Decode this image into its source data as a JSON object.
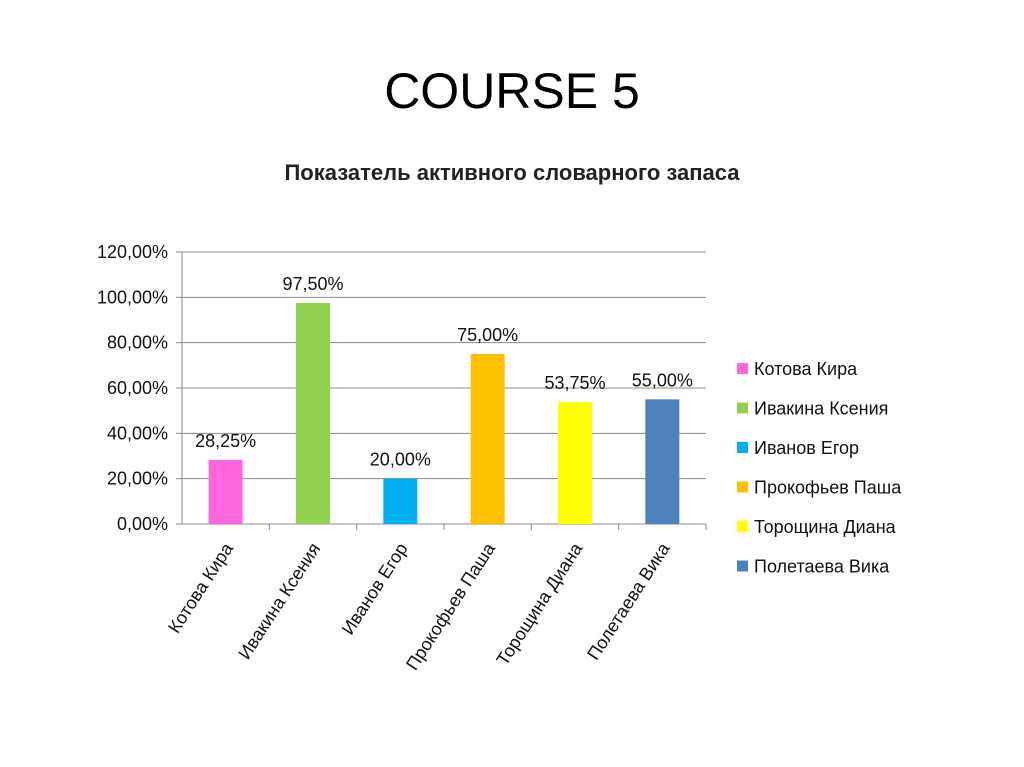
{
  "slide": {
    "title": "COURSE 5"
  },
  "chart_data": {
    "type": "bar",
    "title": "Показатель активного словарного запаса",
    "categories": [
      "Котова Кира",
      "Ивакина Ксения",
      "Иванов Егор",
      "Прокофьев Паша",
      "Торощина Диана",
      "Полетаева Вика"
    ],
    "values": [
      28.25,
      97.5,
      20.0,
      75.0,
      53.75,
      55.0
    ],
    "data_labels": [
      "28,25%",
      "97,50%",
      "20,00%",
      "75,00%",
      "53,75%",
      "55,00%"
    ],
    "colors": [
      "#ff66dd",
      "#92d050",
      "#00b0f0",
      "#ffc000",
      "#ffff00",
      "#4f81bd"
    ],
    "ylim": [
      0,
      120
    ],
    "yticks": [
      "0,00%",
      "20,00%",
      "40,00%",
      "60,00%",
      "80,00%",
      "100,00%",
      "120,00%"
    ],
    "xlabel": "",
    "ylabel": "",
    "grid": true,
    "legend_position": "right"
  }
}
